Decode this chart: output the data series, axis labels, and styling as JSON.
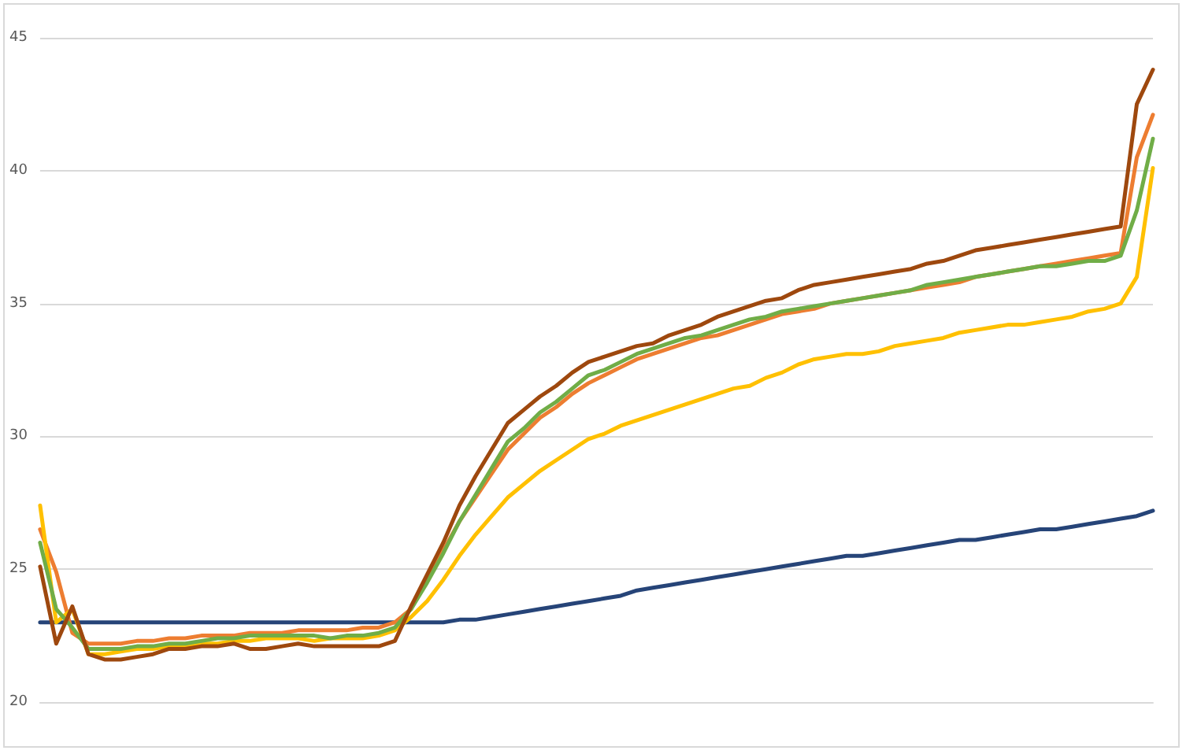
{
  "chart_data": {
    "type": "line",
    "categories": [
      null,
      null,
      null,
      null,
      null,
      null,
      null,
      null,
      null,
      null,
      null,
      null,
      null,
      null,
      null,
      null,
      null,
      null,
      null,
      null,
      null,
      null,
      null,
      null,
      null,
      null,
      null,
      null,
      null,
      null,
      null,
      null,
      null,
      null,
      null,
      null,
      null,
      null,
      null,
      null,
      null,
      null,
      null,
      null,
      null,
      null,
      null,
      null,
      null,
      null,
      null,
      null,
      null,
      null,
      null,
      null,
      null,
      null,
      null,
      null,
      null,
      null,
      null,
      null,
      null,
      null,
      null,
      null,
      null,
      null
    ],
    "series": [
      {
        "color": "#264478",
        "values": [
          23.0,
          23.0,
          23.0,
          23.0,
          23.0,
          23.0,
          23.0,
          23.0,
          23.0,
          23.0,
          23.0,
          23.0,
          23.0,
          23.0,
          23.0,
          23.0,
          23.0,
          23.0,
          23.0,
          23.0,
          23.0,
          23.0,
          23.0,
          23.0,
          23.0,
          23.0,
          23.1,
          23.1,
          23.2,
          23.3,
          23.4,
          23.5,
          23.6,
          23.7,
          23.8,
          23.9,
          24.0,
          24.2,
          24.3,
          24.4,
          24.5,
          24.6,
          24.7,
          24.8,
          24.9,
          25.0,
          25.1,
          25.2,
          25.3,
          25.4,
          25.5,
          25.5,
          25.6,
          25.7,
          25.8,
          25.9,
          26.0,
          26.1,
          26.1,
          26.2,
          26.3,
          26.4,
          26.5,
          26.5,
          26.6,
          26.7,
          26.8,
          26.9,
          27.0,
          27.2
        ]
      },
      {
        "color": "#ed7d31",
        "values": [
          26.5,
          24.9,
          22.6,
          22.2,
          22.2,
          22.2,
          22.3,
          22.3,
          22.4,
          22.4,
          22.5,
          22.5,
          22.5,
          22.6,
          22.6,
          22.6,
          22.7,
          22.7,
          22.7,
          22.7,
          22.8,
          22.8,
          23.0,
          23.5,
          24.6,
          25.7,
          26.8,
          27.7,
          28.6,
          29.5,
          30.1,
          30.7,
          31.1,
          31.6,
          32.0,
          32.3,
          32.6,
          32.9,
          33.1,
          33.3,
          33.5,
          33.7,
          33.8,
          34.0,
          34.2,
          34.4,
          34.6,
          34.7,
          34.8,
          35.0,
          35.1,
          35.2,
          35.3,
          35.4,
          35.5,
          35.6,
          35.7,
          35.8,
          36.0,
          36.1,
          36.2,
          36.3,
          36.4,
          36.5,
          36.6,
          36.7,
          36.8,
          36.9,
          40.5,
          42.1
        ]
      },
      {
        "color": "#ffc000",
        "values": [
          27.4,
          23.0,
          23.5,
          21.8,
          21.8,
          21.9,
          22.0,
          22.0,
          22.1,
          22.1,
          22.2,
          22.2,
          22.3,
          22.3,
          22.4,
          22.4,
          22.4,
          22.3,
          22.4,
          22.4,
          22.4,
          22.5,
          22.7,
          23.2,
          23.8,
          24.6,
          25.5,
          26.3,
          27.0,
          27.7,
          28.2,
          28.7,
          29.1,
          29.5,
          29.9,
          30.1,
          30.4,
          30.6,
          30.8,
          31.0,
          31.2,
          31.4,
          31.6,
          31.8,
          31.9,
          32.2,
          32.4,
          32.7,
          32.9,
          33.0,
          33.1,
          33.1,
          33.2,
          33.4,
          33.5,
          33.6,
          33.7,
          33.9,
          34.0,
          34.1,
          34.2,
          34.2,
          34.3,
          34.4,
          34.5,
          34.7,
          34.8,
          35.0,
          36.0,
          40.1
        ]
      },
      {
        "color": "#70ad47",
        "values": [
          26.0,
          23.5,
          22.8,
          22.0,
          22.0,
          22.0,
          22.1,
          22.1,
          22.2,
          22.2,
          22.3,
          22.4,
          22.4,
          22.5,
          22.5,
          22.5,
          22.5,
          22.5,
          22.4,
          22.5,
          22.5,
          22.6,
          22.8,
          23.5,
          24.5,
          25.6,
          26.8,
          27.8,
          28.8,
          29.8,
          30.3,
          30.9,
          31.3,
          31.8,
          32.3,
          32.5,
          32.8,
          33.1,
          33.3,
          33.5,
          33.7,
          33.8,
          34.0,
          34.2,
          34.4,
          34.5,
          34.7,
          34.8,
          34.9,
          35.0,
          35.1,
          35.2,
          35.3,
          35.4,
          35.5,
          35.7,
          35.8,
          35.9,
          36.0,
          36.1,
          36.2,
          36.3,
          36.4,
          36.4,
          36.5,
          36.6,
          36.6,
          36.8,
          38.5,
          41.2
        ]
      },
      {
        "color": "#9e480e",
        "values": [
          25.1,
          22.2,
          23.6,
          21.8,
          21.6,
          21.6,
          21.7,
          21.8,
          22.0,
          22.0,
          22.1,
          22.1,
          22.2,
          22.0,
          22.0,
          22.1,
          22.2,
          22.1,
          22.1,
          22.1,
          22.1,
          22.1,
          22.3,
          23.6,
          24.8,
          26.0,
          27.4,
          28.5,
          29.5,
          30.5,
          31.0,
          31.5,
          31.9,
          32.4,
          32.8,
          33.0,
          33.2,
          33.4,
          33.5,
          33.8,
          34.0,
          34.2,
          34.5,
          34.7,
          34.9,
          35.1,
          35.2,
          35.5,
          35.7,
          35.8,
          35.9,
          36.0,
          36.1,
          36.2,
          36.3,
          36.5,
          36.6,
          36.8,
          37.0,
          37.1,
          37.2,
          37.3,
          37.4,
          37.5,
          37.6,
          37.7,
          37.8,
          37.9,
          42.5,
          43.8
        ]
      }
    ],
    "ylim": [
      20,
      45
    ],
    "yticks": [
      20,
      25,
      30,
      35,
      40,
      45
    ],
    "grid": "y",
    "marker": "none",
    "line_style": "solid"
  }
}
